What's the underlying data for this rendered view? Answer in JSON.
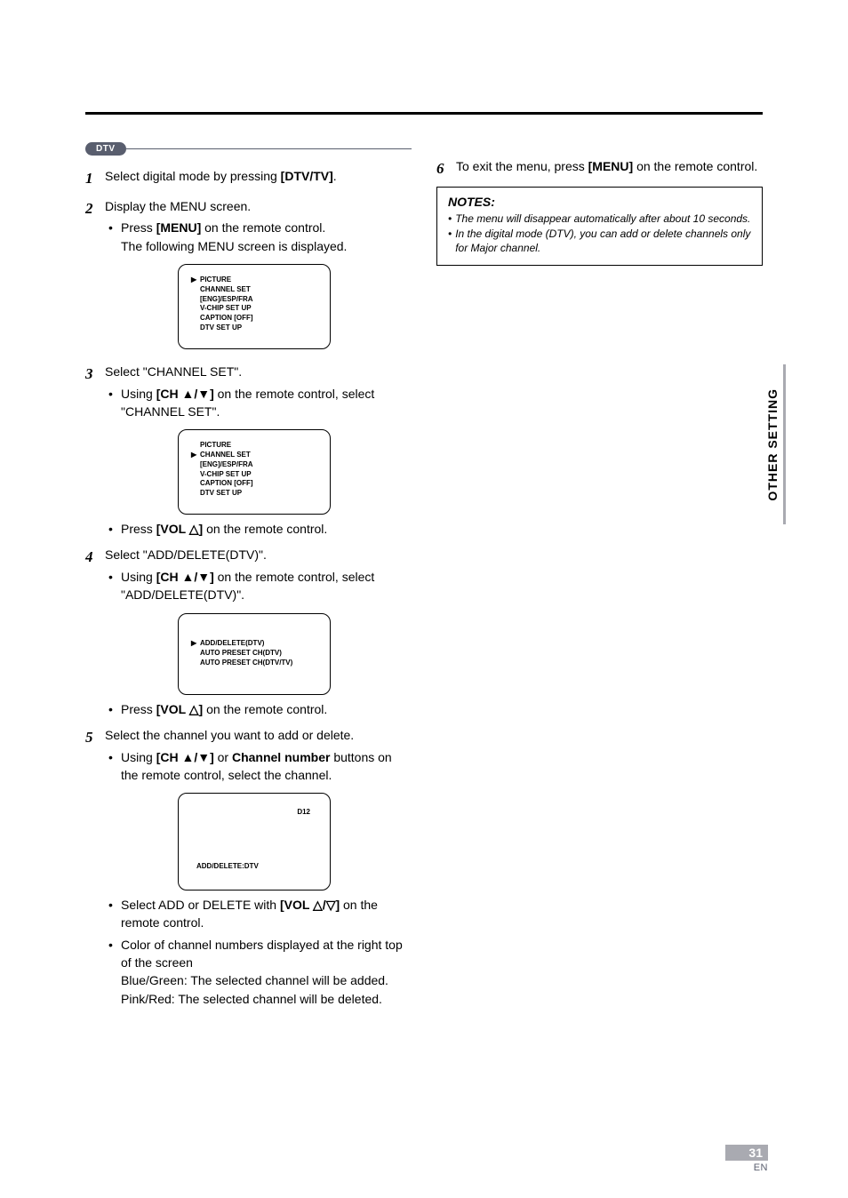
{
  "colors": {
    "rule": "#000000",
    "badge_bg": "#595e6e",
    "badge_fg": "#ffffff",
    "side_accent": "#a9aab1",
    "foot_bg": "#a9aab1",
    "foot_fg": "#ffffff",
    "en_color": "#595e6e"
  },
  "badge": {
    "label": "DTV"
  },
  "steps": {
    "s1": {
      "num": "1",
      "text_a": "Select digital mode by pressing ",
      "key": "[DTV/TV]",
      "text_b": "."
    },
    "s2": {
      "num": "2",
      "text": "Display the MENU screen.",
      "b1a": "Press ",
      "b1key": "[MENU]",
      "b1b": " on the remote control.",
      "b1c": "The following MENU screen is displayed."
    },
    "s3": {
      "num": "3",
      "text": "Select \"CHANNEL SET\".",
      "b1a": "Using ",
      "b1key": "[CH ▲/▼]",
      "b1b": " on the remote control, select \"CHANNEL SET\".",
      "b2a": "Press ",
      "b2key": "[VOL △]",
      "b2b": " on the remote control."
    },
    "s4": {
      "num": "4",
      "text": "Select \"ADD/DELETE(DTV)\".",
      "b1a": "Using ",
      "b1key": "[CH ▲/▼]",
      "b1b": " on the remote control, select \"ADD/DELETE(DTV)\".",
      "b2a": "Press ",
      "b2key": "[VOL △]",
      "b2b": " on the remote control."
    },
    "s5": {
      "num": "5",
      "text": "Select the channel you want to add or delete.",
      "b1a": "Using ",
      "b1key1": "[CH ▲/▼]",
      "b1mid": " or ",
      "b1key2": "Channel number",
      "b1b": " buttons on the remote control, select the channel.",
      "b2a": "Select ADD or DELETE with ",
      "b2key": "[VOL △/▽]",
      "b2b": " on the",
      "b2c": "remote control.",
      "b3a": "Color of channel numbers displayed at the right top of the screen",
      "b3b": "Blue/Green: The selected channel will be added.",
      "b3c": "Pink/Red: The selected channel will be deleted."
    },
    "s6": {
      "num": "6",
      "text_a": "To exit the menu, press ",
      "key": "[MENU]",
      "text_b": " on the remote control."
    }
  },
  "menu1": {
    "items": [
      "PICTURE",
      "CHANNEL SET",
      "[ENG]/ESP/FRA",
      "V-CHIP SET UP",
      "CAPTION [OFF]",
      "DTV SET UP"
    ],
    "pointer_index": 0
  },
  "menu2": {
    "items": [
      "PICTURE",
      "CHANNEL SET",
      "[ENG]/ESP/FRA",
      "V-CHIP SET UP",
      "CAPTION [OFF]",
      "DTV SET UP"
    ],
    "pointer_index": 1
  },
  "menu3": {
    "items": [
      "ADD/DELETE(DTV)",
      "AUTO PRESET CH(DTV)",
      "AUTO PRESET CH(DTV/TV)"
    ],
    "pointer_index": 0
  },
  "menu4": {
    "corner": "D12",
    "bottom": "ADD/DELETE:DTV"
  },
  "notes": {
    "title": "NOTES:",
    "n1": "The menu will disappear automatically after about 10 seconds.",
    "n2": "In the digital mode (DTV), you can add or delete channels only for Major channel."
  },
  "side_tab": "OTHER SETTING",
  "page": {
    "num": "31",
    "en": "EN"
  }
}
